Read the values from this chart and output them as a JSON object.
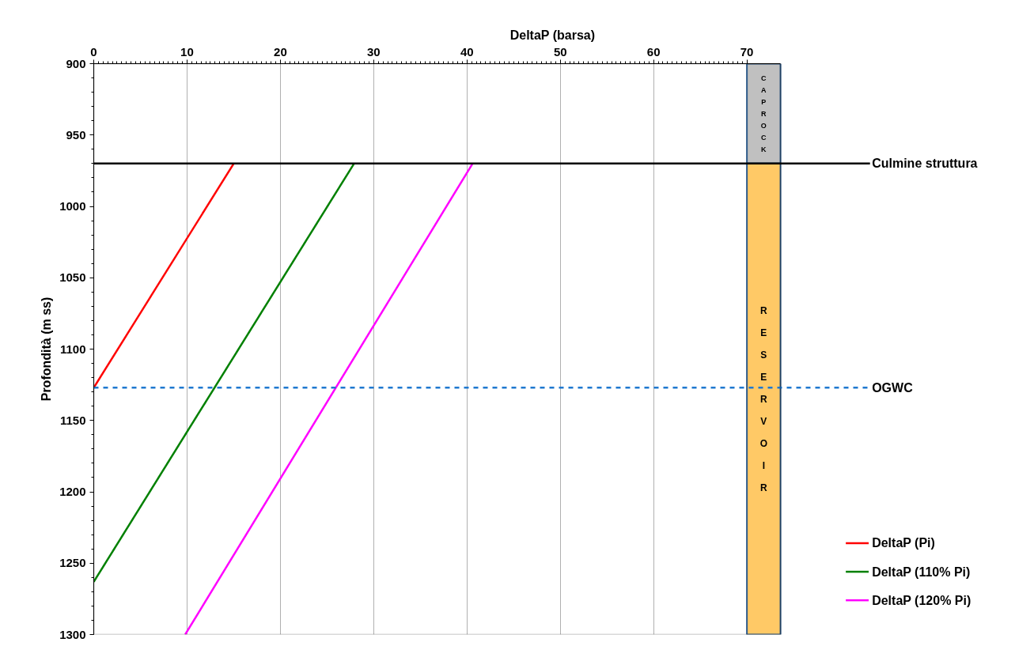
{
  "chart_data": {
    "type": "line",
    "xlabel": "DeltaP (barsa)",
    "ylabel": "Profondità (m ss)",
    "xlim": [
      0,
      73.6
    ],
    "xticks": [
      0,
      10,
      20,
      30,
      40,
      50,
      60,
      70
    ],
    "ylim": [
      1300,
      900
    ],
    "yticks": [
      900,
      950,
      1000,
      1050,
      1100,
      1150,
      1200,
      1250,
      1300
    ],
    "grid": "x",
    "legend": "right",
    "line_style": "solid",
    "marker": "none",
    "series": [
      {
        "name": "DeltaP (Pi)",
        "color": "#ff0000",
        "x": [
          15,
          0
        ],
        "values": [
          970,
          1127
        ]
      },
      {
        "name": "DeltaP (110% Pi)",
        "color": "#008000",
        "x": [
          27.9,
          0
        ],
        "values": [
          970,
          1263
        ]
      },
      {
        "name": "DeltaP (120% Pi)",
        "color": "#ff00ff",
        "x": [
          40.6,
          9.8
        ],
        "values": [
          970,
          1300
        ]
      }
    ],
    "ref_lines": [
      {
        "axis": "y",
        "value": 970,
        "label": "Culmine struttura",
        "color": "#000000",
        "line_style": "solid"
      },
      {
        "axis": "y",
        "value": 1127,
        "label": "OGWC",
        "color": "#1f78d0",
        "line_style": "dashed"
      }
    ],
    "bands": [
      {
        "axis": "y",
        "from": 900,
        "to": 970,
        "label": "CAPROCK",
        "color": "#c0c0c0"
      },
      {
        "axis": "y",
        "from": 970,
        "to": 1300,
        "label": "RESERVOIR",
        "color": "#ffc966"
      }
    ]
  }
}
